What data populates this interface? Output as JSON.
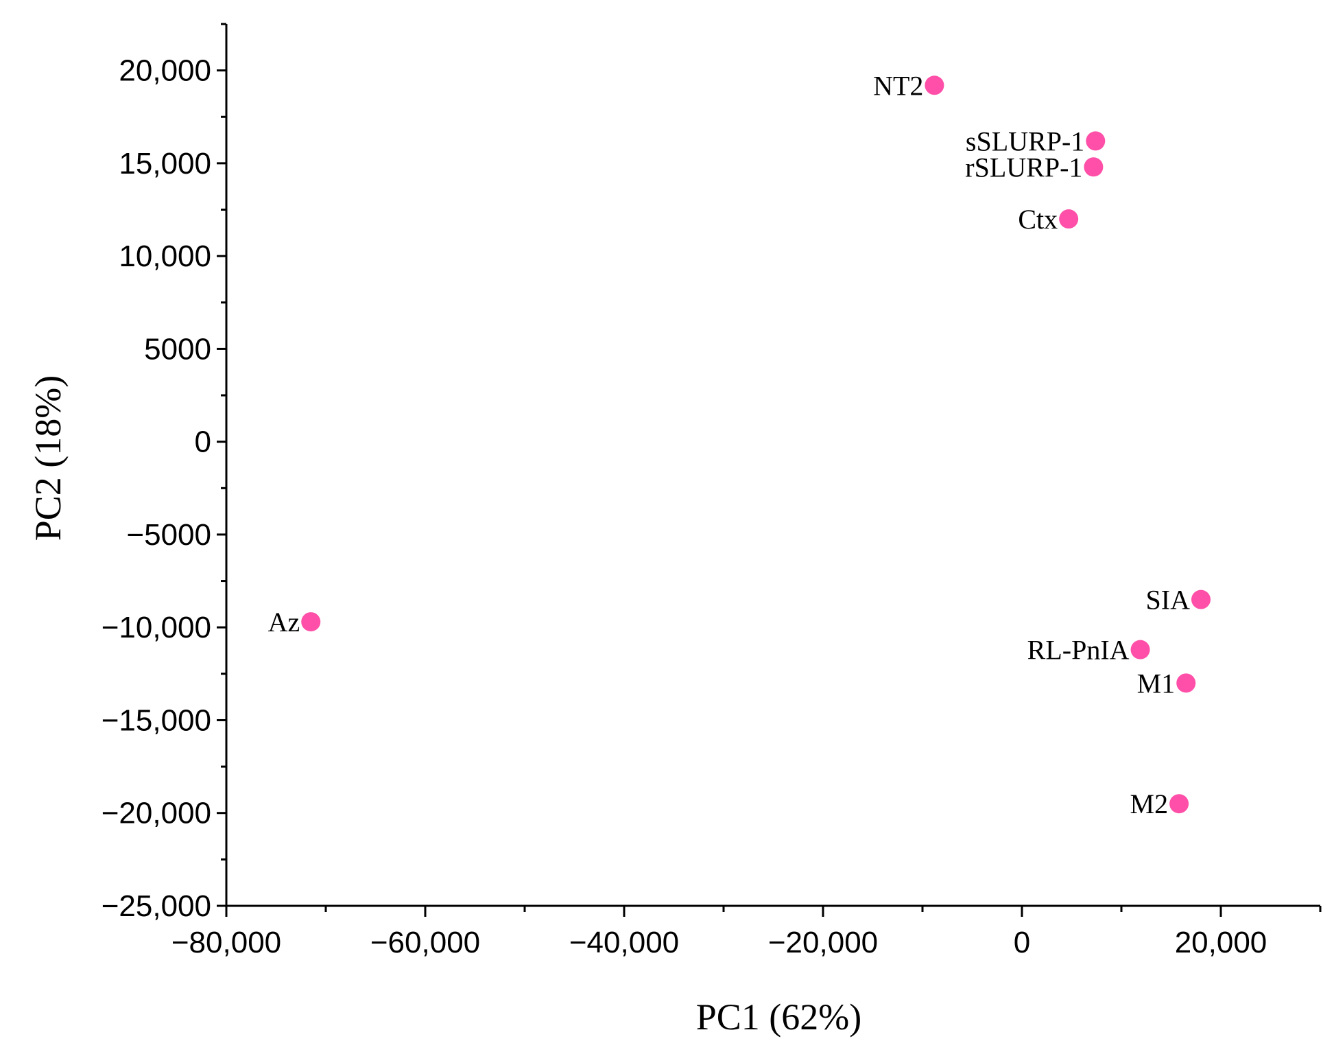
{
  "chart_data": {
    "type": "scatter",
    "title": "",
    "xlabel": "PC1 (62%)",
    "ylabel": "PC2 (18%)",
    "xlim": [
      -80000,
      30000
    ],
    "ylim": [
      -25000,
      22500
    ],
    "grid": false,
    "x_ticks": [
      {
        "value": -80000,
        "label": "−80,000"
      },
      {
        "value": -60000,
        "label": "−60,000"
      },
      {
        "value": -40000,
        "label": "−40,000"
      },
      {
        "value": -20000,
        "label": "−20,000"
      },
      {
        "value": 0,
        "label": "0"
      },
      {
        "value": 20000,
        "label": "20,000"
      }
    ],
    "y_ticks": [
      {
        "value": 20000,
        "label": "20,000"
      },
      {
        "value": 15000,
        "label": "15,000"
      },
      {
        "value": 10000,
        "label": "10,000"
      },
      {
        "value": 5000,
        "label": "5000"
      },
      {
        "value": 0,
        "label": "0"
      },
      {
        "value": -5000,
        "label": "−5000"
      },
      {
        "value": -10000,
        "label": "−10,000"
      },
      {
        "value": -15000,
        "label": "−15,000"
      },
      {
        "value": -20000,
        "label": "−20,000"
      },
      {
        "value": -25000,
        "label": "−25,000"
      }
    ],
    "marker_color": "#ff4fa8",
    "points": [
      {
        "label": "NT2",
        "x": -8800,
        "y": 19200
      },
      {
        "label": "sSLURP-1",
        "x": 7400,
        "y": 16200
      },
      {
        "label": "rSLURP-1",
        "x": 7200,
        "y": 14800
      },
      {
        "label": "Ctx",
        "x": 4700,
        "y": 12000
      },
      {
        "label": "Az",
        "x": -71500,
        "y": -9700
      },
      {
        "label": "SIA",
        "x": 18000,
        "y": -8500
      },
      {
        "label": "RL-PnIA",
        "x": 11900,
        "y": -11200
      },
      {
        "label": "M1",
        "x": 16500,
        "y": -13000
      },
      {
        "label": "M2",
        "x": 15800,
        "y": -19500
      }
    ]
  }
}
